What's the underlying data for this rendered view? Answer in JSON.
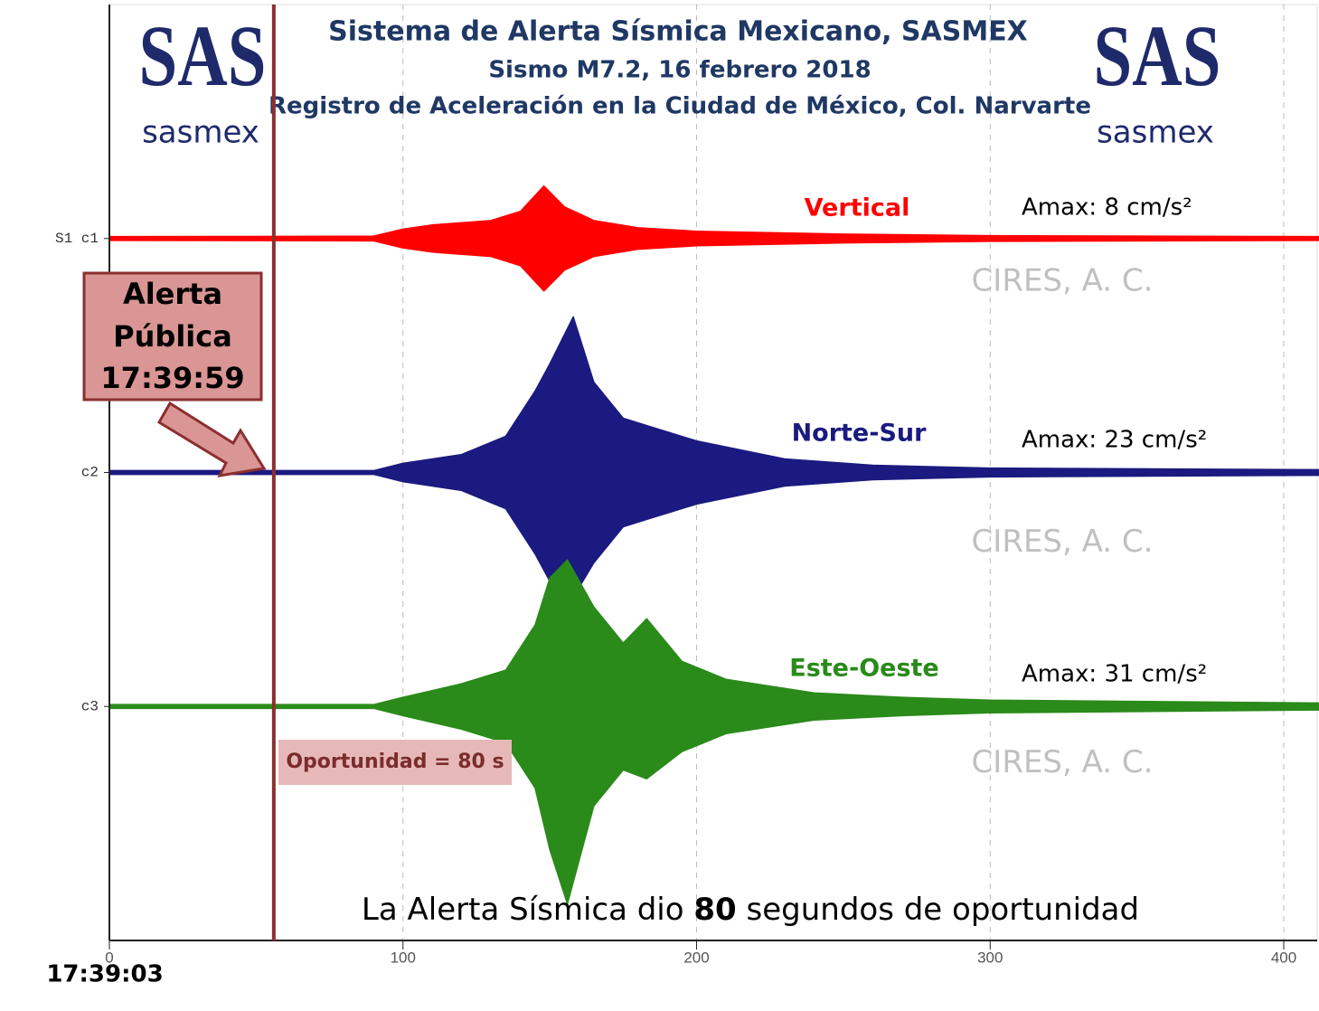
{
  "logo": {
    "mark": "SAS",
    "text": "sasmex"
  },
  "chart_data": {
    "type": "seismogram",
    "title": "Sistema de Alerta Sísmica Mexicano, SASMEX",
    "subtitle": "Sismo M7.2, 16 febrero 2018",
    "subtitle2": "Registro de Aceleración en la Ciudad de México, Col. Narvarte",
    "xlim": [
      0,
      412
    ],
    "xticks": [
      0,
      100,
      200,
      300,
      400
    ],
    "ylim": [
      0,
      4
    ],
    "yticks": [
      {
        "value": 3,
        "label": "S1 c1"
      },
      {
        "value": 2,
        "label": "c2"
      },
      {
        "value": 1,
        "label": "c3"
      }
    ],
    "grid": true,
    "watermark": "CIRES, A. C.",
    "series": [
      {
        "name": "Vertical",
        "color": "#ff0000",
        "amax": "Amax: 8 cm/s²",
        "x": [
          0,
          90,
          100,
          110,
          130,
          140,
          148,
          155,
          165,
          180,
          200,
          250,
          300,
          412
        ],
        "upper": [
          3.008,
          3.01,
          3.04,
          3.058,
          3.077,
          3.116,
          3.224,
          3.135,
          3.077,
          3.046,
          3.031,
          3.019,
          3.012,
          3.008
        ],
        "lower": [
          2.992,
          2.99,
          2.96,
          2.942,
          2.923,
          2.884,
          2.776,
          2.865,
          2.923,
          2.954,
          2.969,
          2.981,
          2.988,
          2.992
        ]
      },
      {
        "name": "Norte-Sur",
        "color": "#1a1a80",
        "amax": "Amax:  23 cm/s²",
        "x": [
          0,
          90,
          100,
          120,
          135,
          145,
          150,
          158,
          165,
          175,
          185,
          200,
          230,
          260,
          300,
          412
        ],
        "upper": [
          2.008,
          2.008,
          2.039,
          2.077,
          2.155,
          2.348,
          2.464,
          2.665,
          2.386,
          2.232,
          2.193,
          2.135,
          2.058,
          2.031,
          2.019,
          2.012
        ],
        "lower": [
          1.992,
          1.992,
          1.961,
          1.923,
          1.845,
          1.652,
          1.536,
          1.467,
          1.614,
          1.768,
          1.807,
          1.865,
          1.942,
          1.969,
          1.981,
          1.988
        ]
      },
      {
        "name": "Este-Oeste",
        "color": "#2a8a1a",
        "amax": "Amax:  31 cm/s²",
        "x": [
          0,
          90,
          100,
          120,
          135,
          145,
          150,
          156,
          165,
          175,
          183,
          195,
          210,
          240,
          270,
          300,
          412
        ],
        "upper": [
          1.008,
          1.008,
          1.039,
          1.097,
          1.155,
          1.348,
          1.549,
          1.626,
          1.425,
          1.271,
          1.375,
          1.193,
          1.116,
          1.058,
          1.039,
          1.027,
          1.015
        ],
        "lower": [
          0.992,
          0.992,
          0.961,
          0.903,
          0.845,
          0.652,
          0.389,
          0.157,
          0.575,
          0.729,
          0.691,
          0.807,
          0.884,
          0.942,
          0.961,
          0.973,
          0.985
        ]
      }
    ],
    "alert": {
      "x": 56,
      "color": "#8b2f2f",
      "lines": [
        "Alerta",
        "Pública",
        "17:39:59"
      ]
    },
    "opportunity": "Oportunidad = 80 s",
    "caption": [
      "La Alerta Sísmica dio ",
      "80",
      " segundos de oportunidad"
    ],
    "start_time": "17:39:03"
  }
}
